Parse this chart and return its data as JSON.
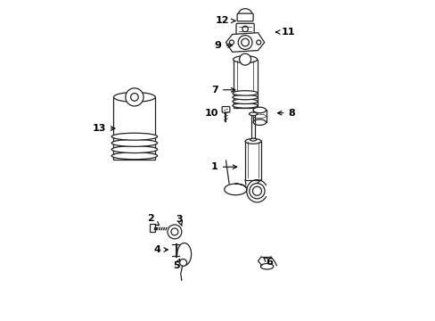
{
  "bg_color": "#ffffff",
  "line_color": "#222222",
  "label_color": "#000000",
  "figsize": [
    4.89,
    3.6
  ],
  "dpi": 100,
  "label_fontsize": 8,
  "label_data": [
    [
      12,
      0.515,
      0.935,
      0.557,
      0.935
    ],
    [
      11,
      0.72,
      0.9,
      0.67,
      0.9
    ],
    [
      9,
      0.5,
      0.858,
      0.555,
      0.858
    ],
    [
      7,
      0.49,
      0.72,
      0.565,
      0.72
    ],
    [
      8,
      0.73,
      0.648,
      0.675,
      0.648
    ],
    [
      10,
      0.48,
      0.648,
      0.543,
      0.655
    ],
    [
      1,
      0.49,
      0.48,
      0.57,
      0.48
    ],
    [
      13,
      0.13,
      0.6,
      0.19,
      0.6
    ],
    [
      2,
      0.29,
      0.32,
      0.32,
      0.295
    ],
    [
      3,
      0.38,
      0.318,
      0.388,
      0.295
    ],
    [
      4,
      0.31,
      0.222,
      0.355,
      0.222
    ],
    [
      5,
      0.37,
      0.172,
      0.382,
      0.195
    ],
    [
      6,
      0.66,
      0.183,
      0.64,
      0.2
    ]
  ]
}
